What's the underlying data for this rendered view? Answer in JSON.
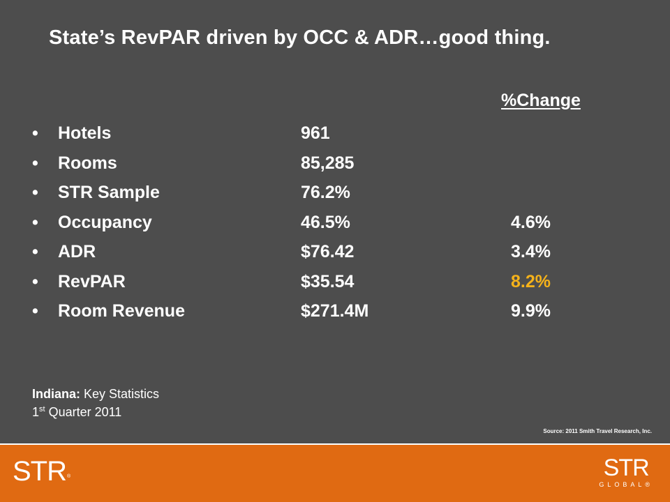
{
  "slide": {
    "title": "State’s RevPAR driven by OCC & ADR…good thing.",
    "change_header": "%Change",
    "bullet_glyph": "•",
    "stats": [
      {
        "label": "Hotels",
        "value": "961",
        "change": ""
      },
      {
        "label": "Rooms",
        "value": "85,285",
        "change": ""
      },
      {
        "label": "STR Sample",
        "value": "76.2%",
        "change": ""
      },
      {
        "label": "Occupancy",
        "value": "46.5%",
        "change": "4.6%"
      },
      {
        "label": "ADR",
        "value": "$76.42",
        "change": "3.4%"
      },
      {
        "label": "RevPAR",
        "value": "$35.54",
        "change": "8.2%"
      },
      {
        "label": "Room Revenue",
        "value": "$271.4M",
        "change": "9.9%"
      }
    ],
    "highlight_color": "#f5b21a",
    "caption": {
      "state": "Indiana:",
      "subtitle": " Key Statistics",
      "quarter_num": "1",
      "quarter_suffix": "st",
      "quarter_rest": " Quarter 2011"
    },
    "source": "Source: 2011 Smith Travel Research, Inc."
  },
  "footer": {
    "logo_left": "STR",
    "logo_left_mark": "®",
    "logo_right_top": "STR",
    "logo_right_bottom": "GLOBAL",
    "logo_right_mark": "®",
    "color": "#e06a12"
  },
  "colors": {
    "background": "#4d4d4d",
    "text": "#ffffff"
  }
}
